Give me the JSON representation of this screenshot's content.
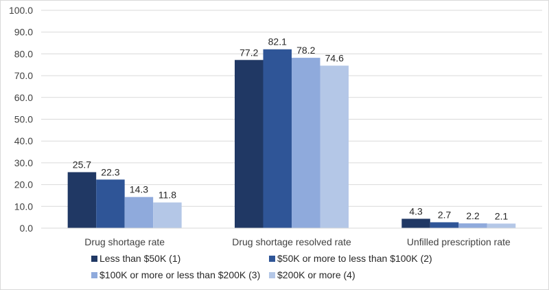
{
  "chart_data": {
    "type": "bar",
    "title": "",
    "xlabel": "",
    "ylabel": "",
    "ylim": [
      0,
      100
    ],
    "yticks": [
      "0.0",
      "10.0",
      "20.0",
      "30.0",
      "40.0",
      "50.0",
      "60.0",
      "70.0",
      "80.0",
      "90.0",
      "100.0"
    ],
    "grid": true,
    "legend_position": "bottom",
    "categories": [
      "Drug shortage rate",
      "Drug shortage resolved rate",
      "Unfilled prescription rate"
    ],
    "series": [
      {
        "name": "Less than $50K (1)",
        "color": "#203864",
        "values": [
          25.7,
          77.2,
          4.3
        ],
        "labels": [
          "25.7",
          "77.2",
          "4.3"
        ]
      },
      {
        "name": "$50K or more to less than $100K (2)",
        "color": "#2f5597",
        "values": [
          22.3,
          82.1,
          2.7
        ],
        "labels": [
          "22.3",
          "82.1",
          "2.7"
        ]
      },
      {
        "name": "$100K or more or less than $200K (3)",
        "color": "#8faadc",
        "values": [
          14.3,
          78.2,
          2.2
        ],
        "labels": [
          "14.3",
          "78.2",
          "2.2"
        ]
      },
      {
        "name": "$200K or more (4)",
        "color": "#b4c7e7",
        "values": [
          11.8,
          74.6,
          2.1
        ],
        "labels": [
          "11.8",
          "74.6",
          "2.1"
        ]
      }
    ]
  }
}
